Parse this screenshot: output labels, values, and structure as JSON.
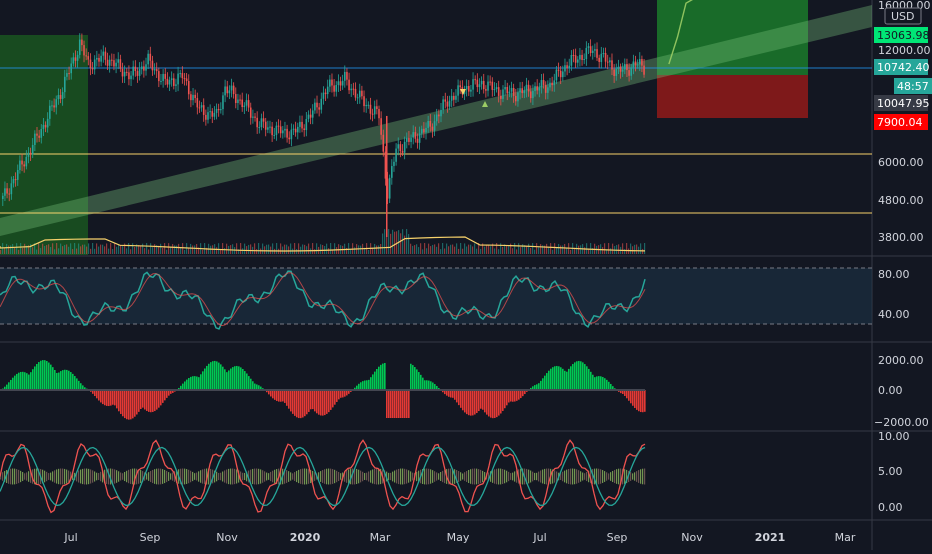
{
  "chart_data": {
    "type": "line",
    "panels": [
      {
        "name": "price",
        "scale": "log",
        "y_ticks": [
          3800,
          4800,
          6000,
          12000
        ],
        "top_tick_partial": "16000.00"
      },
      {
        "name": "rsi",
        "y_ticks": [
          40,
          80
        ],
        "y_range": [
          20,
          100
        ]
      },
      {
        "name": "momentum-histogram",
        "y_ticks": [
          2000,
          0,
          -2000
        ],
        "y_range": [
          -3000,
          3000
        ]
      },
      {
        "name": "oscillator",
        "y_ticks": [
          10,
          5,
          0
        ],
        "y_range": [
          -1,
          11
        ]
      }
    ],
    "x_ticks": [
      {
        "label": "Jul",
        "bold": false
      },
      {
        "label": "Sep",
        "bold": false
      },
      {
        "label": "Nov",
        "bold": false
      },
      {
        "label": "2020",
        "bold": true
      },
      {
        "label": "Mar",
        "bold": false
      },
      {
        "label": "May",
        "bold": false
      },
      {
        "label": "Jul",
        "bold": false
      },
      {
        "label": "Sep",
        "bold": false
      },
      {
        "label": "Nov",
        "bold": false
      },
      {
        "label": "2021",
        "bold": true
      },
      {
        "label": "Mar",
        "bold": false
      }
    ],
    "currency_label": "USD",
    "price_tags": [
      {
        "value": "13063.98",
        "bg": "#00e676",
        "fg": "#131722"
      },
      {
        "value": "10742.40",
        "bg": "#26a69a",
        "fg": "#ffffff"
      },
      {
        "value": "48:57",
        "bg": "#26a69a",
        "fg": "#ffffff"
      },
      {
        "value": "10047.95",
        "bg": "#363a45",
        "fg": "#ffffff"
      },
      {
        "value": "7900.04",
        "bg": "#ff0000",
        "fg": "#ffffff"
      }
    ],
    "horizontal_levels": [
      10742.4,
      6400,
      4400
    ],
    "price_series": [
      {
        "t": 0,
        "v": 4800
      },
      {
        "t": 4,
        "v": 7000
      },
      {
        "t": 7,
        "v": 9500
      },
      {
        "t": 9,
        "v": 12500
      },
      {
        "t": 10,
        "v": 11000
      },
      {
        "t": 12,
        "v": 11500
      },
      {
        "t": 15,
        "v": 10200
      },
      {
        "t": 17,
        "v": 11200
      },
      {
        "t": 19,
        "v": 9800
      },
      {
        "t": 21,
        "v": 10200
      },
      {
        "t": 23,
        "v": 8300
      },
      {
        "t": 25,
        "v": 8000
      },
      {
        "t": 26,
        "v": 9500
      },
      {
        "t": 28,
        "v": 8700
      },
      {
        "t": 30,
        "v": 7600
      },
      {
        "t": 32,
        "v": 7300
      },
      {
        "t": 34,
        "v": 7200
      },
      {
        "t": 36,
        "v": 8000
      },
      {
        "t": 38,
        "v": 9500
      },
      {
        "t": 40,
        "v": 10000
      },
      {
        "t": 42,
        "v": 8800
      },
      {
        "t": 44,
        "v": 8000
      },
      {
        "t": 45,
        "v": 5000
      },
      {
        "t": 46,
        "v": 6500
      },
      {
        "t": 48,
        "v": 7000
      },
      {
        "t": 50,
        "v": 7500
      },
      {
        "t": 52,
        "v": 8800
      },
      {
        "t": 54,
        "v": 9500
      },
      {
        "t": 56,
        "v": 9800
      },
      {
        "t": 58,
        "v": 9300
      },
      {
        "t": 60,
        "v": 9200
      },
      {
        "t": 62,
        "v": 9400
      },
      {
        "t": 64,
        "v": 9700
      },
      {
        "t": 66,
        "v": 11000
      },
      {
        "t": 68,
        "v": 11700
      },
      {
        "t": 69,
        "v": 12000
      },
      {
        "t": 70,
        "v": 11500
      },
      {
        "t": 72,
        "v": 10500
      },
      {
        "t": 73,
        "v": 10700
      },
      {
        "t": 74,
        "v": 11000
      },
      {
        "t": 75,
        "v": 10800
      }
    ],
    "projection_series": [
      {
        "t": 78,
        "v": 11000
      },
      {
        "t": 79,
        "v": 13000
      },
      {
        "t": 80,
        "v": 16000
      },
      {
        "t": 82,
        "v": 17000
      },
      {
        "t": 84,
        "v": 18000
      }
    ],
    "long_position": {
      "entry": 10742.4,
      "target": 13063.98,
      "stop": 7900.04
    },
    "colors": {
      "background": "#131722",
      "up": "#26a69a",
      "down": "#ef5350",
      "channel": "#7bc67e",
      "level_line": "#f7d26b",
      "level_blue": "#2196f3"
    }
  }
}
